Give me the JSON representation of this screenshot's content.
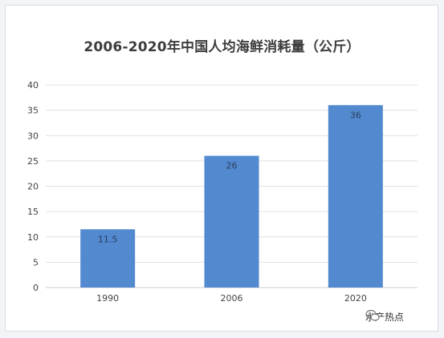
{
  "chart_data": {
    "type": "bar",
    "title": "2006-2020年中国人均海鲜消耗量（公斤）",
    "categories": [
      "1990",
      "2006",
      "2020"
    ],
    "values": [
      11.5,
      26,
      36
    ],
    "data_labels": [
      "11.5",
      "26",
      "36"
    ],
    "ylim": [
      0,
      40
    ],
    "yticks": [
      0,
      5,
      10,
      15,
      20,
      25,
      30,
      35,
      40
    ],
    "grid": true,
    "legend": "none",
    "bar_color": "#5289cf",
    "xlabel": "",
    "ylabel": ""
  },
  "watermark": {
    "text": "水产热点",
    "icon": "wechat-icon"
  }
}
